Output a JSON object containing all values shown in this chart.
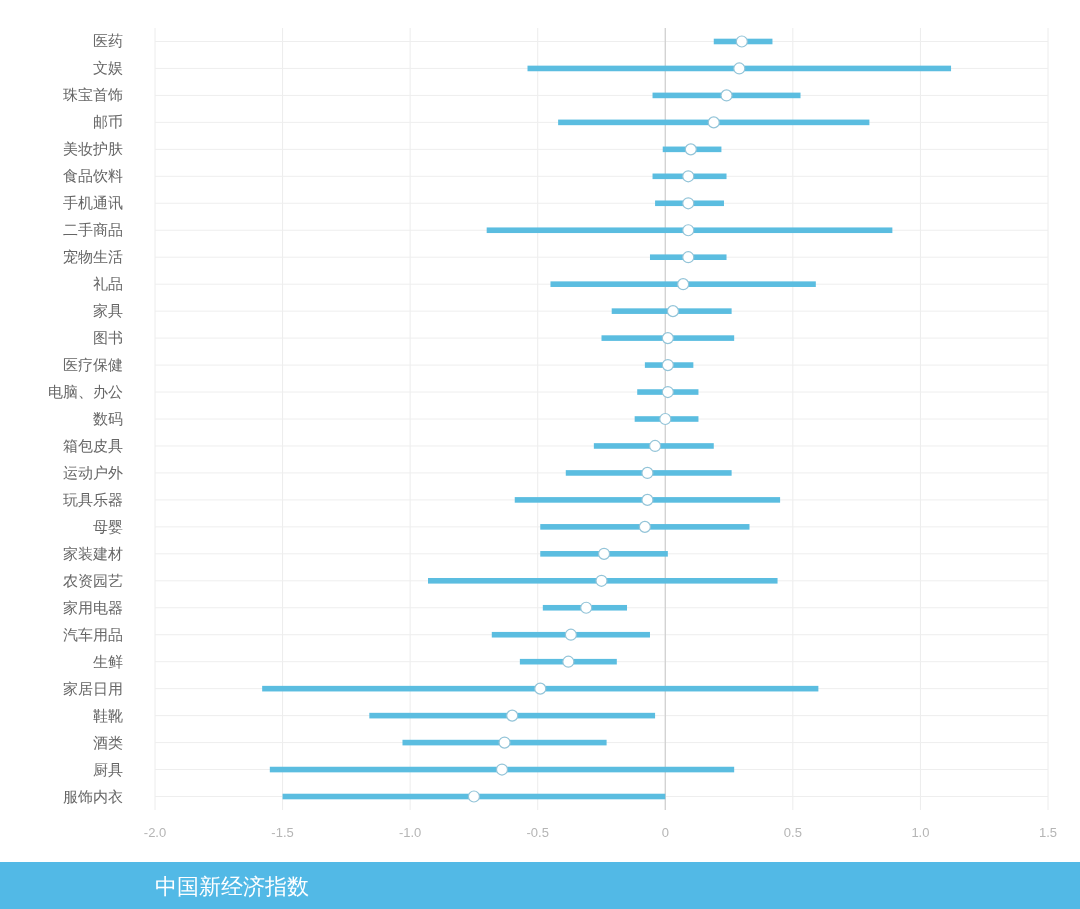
{
  "chart_data": {
    "type": "bar",
    "orientation": "horizontal",
    "title": "中国新经济指数",
    "categories": [
      "医药",
      "文娱",
      "珠宝首饰",
      "邮币",
      "美妆护肤",
      "食品饮料",
      "手机通讯",
      "二手商品",
      "宠物生活",
      "礼品",
      "家具",
      "图书",
      "医疗保健",
      "电脑、办公",
      "数码",
      "箱包皮具",
      "运动户外",
      "玩具乐器",
      "母婴",
      "家装建材",
      "农资园艺",
      "家用电器",
      "汽车用品",
      "生鲜",
      "家居日用",
      "鞋靴",
      "酒类",
      "厨具",
      "服饰内衣"
    ],
    "series": [
      {
        "type": "bar",
        "color": "#5bbde0",
        "base": [
          0.19,
          -0.54,
          -0.05,
          -0.42,
          -0.01,
          -0.05,
          -0.04,
          -0.7,
          -0.06,
          -0.45,
          -0.21,
          -0.25,
          -0.08,
          -0.11,
          -0.12,
          -0.28,
          -0.39,
          -0.59,
          -0.49,
          -0.49,
          -0.93,
          -0.48,
          -0.68,
          -0.57,
          -1.58,
          -1.16,
          -1.03,
          -1.55,
          -1.5
        ],
        "values": [
          0.23,
          1.66,
          0.58,
          1.22,
          0.23,
          0.29,
          0.27,
          1.59,
          0.3,
          1.04,
          0.47,
          0.52,
          0.19,
          0.24,
          0.25,
          0.47,
          0.65,
          1.04,
          0.82,
          0.5,
          1.37,
          0.33,
          0.62,
          0.38,
          2.18,
          1.12,
          0.8,
          1.82,
          1.5
        ]
      },
      {
        "type": "scatter",
        "color": "#ffffff",
        "marker": "circle",
        "values": [
          0.3,
          0.29,
          0.24,
          0.19,
          0.1,
          0.09,
          0.09,
          0.09,
          0.09,
          0.07,
          0.03,
          0.01,
          0.01,
          0.01,
          0.0,
          -0.04,
          -0.07,
          -0.07,
          -0.08,
          -0.24,
          -0.25,
          -0.31,
          -0.37,
          -0.38,
          -0.49,
          -0.6,
          -0.63,
          -0.64,
          -0.75
        ]
      }
    ],
    "xlim": [
      -2.0,
      1.5
    ],
    "xticks": [
      {
        "value": -2,
        "label": "-2.0"
      },
      -1.5,
      {
        "value": -1,
        "label": "-1.0"
      },
      -0.5,
      0,
      0.5,
      {
        "value": 1,
        "label": "1.0"
      },
      1.5
    ],
    "grid": true,
    "ref_lines": [
      {
        "axis": "x",
        "value": 0,
        "color": "#cfcfcf"
      }
    ]
  }
}
